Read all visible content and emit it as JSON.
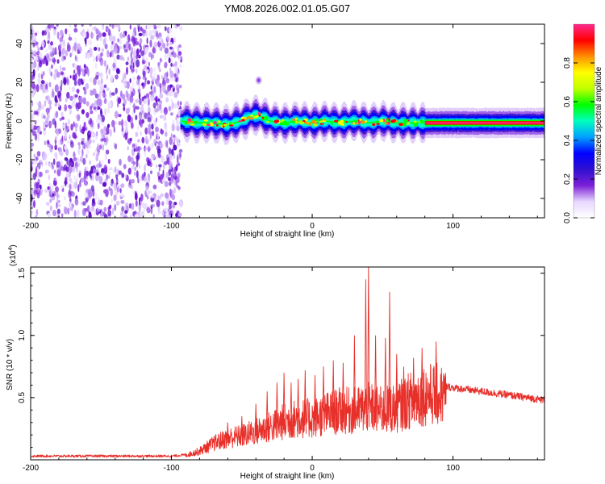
{
  "title": "YM08.2026.002.01.05.G07",
  "chart_data": [
    {
      "type": "heatmap",
      "xlabel": "Height of straight line (km)",
      "ylabel": "Frequency (Hz)",
      "xlim": [
        -200,
        165
      ],
      "ylim": [
        -50,
        50
      ],
      "xticks": [
        -200,
        -100,
        0,
        100
      ],
      "xtick_labels": [
        "-200",
        "-100",
        "0",
        "100"
      ],
      "yticks": [
        -40,
        -20,
        0,
        20,
        40
      ],
      "ytick_labels": [
        "-40",
        "-20",
        "0",
        "20",
        "40"
      ],
      "colorbar": {
        "label": "Normalized spectral amplitude",
        "range": [
          0,
          1
        ],
        "ticks": [
          0.0,
          0.2,
          0.4,
          0.6,
          0.8
        ],
        "tick_labels": [
          "0.0",
          "0.2",
          "0.4",
          "0.6",
          "0.8"
        ],
        "colormap": [
          "#ffffff",
          "#e8d8ff",
          "#7b1fd6",
          "#3010d0",
          "#0000ff",
          "#00a0ff",
          "#00ffc0",
          "#00ff00",
          "#c0ff00",
          "#ffff00",
          "#ff9000",
          "#ff0000",
          "#ff2a8c"
        ]
      },
      "noise_region_x": [
        -200,
        -93
      ],
      "signal_start_x": -93,
      "signal_track": {
        "x": [
          -93,
          -80,
          -70,
          -60,
          -50,
          -45,
          -40,
          -35,
          -30,
          -20,
          -10,
          0,
          10,
          20,
          30,
          40,
          50,
          60,
          70,
          80,
          100,
          120,
          140,
          165
        ],
        "freq": [
          0,
          -1,
          -1,
          -2,
          0,
          2,
          3,
          2,
          0,
          -1,
          0,
          -1,
          0,
          -1,
          0,
          -1,
          0,
          -1,
          -1,
          -1,
          -1,
          -1,
          -1,
          -1
        ]
      },
      "isolated_blob": {
        "x": -38,
        "freq": 21
      }
    },
    {
      "type": "line",
      "xlabel": "Height of straight line (km)",
      "ylabel": "SNR (10 * v/v)",
      "scale_label": "(x10",
      "scale_exponent": "4",
      "xlim": [
        -200,
        165
      ],
      "ylim": [
        0,
        1.55
      ],
      "xticks": [
        -200,
        -100,
        0,
        100
      ],
      "xtick_labels": [
        "-200",
        "-100",
        "0",
        "100"
      ],
      "yticks": [
        0.5,
        1.0,
        1.5
      ],
      "ytick_labels": [
        "0.5",
        "1.0",
        "1.5"
      ],
      "series": [
        {
          "name": "SNR",
          "color": "#e8302a",
          "envelope_x": [
            -200,
            -150,
            -100,
            -90,
            -80,
            -70,
            -60,
            -50,
            -40,
            -30,
            -20,
            -10,
            0,
            10,
            20,
            30,
            40,
            50,
            60,
            70,
            80,
            90,
            100,
            120,
            140,
            165
          ],
          "envelope_y": [
            0.03,
            0.03,
            0.03,
            0.04,
            0.08,
            0.15,
            0.2,
            0.22,
            0.26,
            0.3,
            0.35,
            0.38,
            0.38,
            0.42,
            0.45,
            0.45,
            0.48,
            0.45,
            0.48,
            0.55,
            0.6,
            0.6,
            0.58,
            0.55,
            0.52,
            0.48
          ],
          "spikes_x": [
            -60,
            -50,
            -40,
            -32,
            -25,
            -20,
            -15,
            -10,
            -5,
            2,
            8,
            15,
            22,
            30,
            38,
            40,
            45,
            52,
            55,
            60,
            65,
            72,
            78,
            88
          ],
          "spikes_y": [
            0.3,
            0.35,
            0.45,
            0.55,
            0.62,
            0.7,
            0.62,
            0.65,
            0.72,
            0.68,
            0.75,
            0.8,
            0.78,
            1.0,
            1.45,
            1.55,
            1.0,
            0.98,
            1.35,
            0.85,
            0.75,
            0.82,
            0.9,
            0.95
          ]
        }
      ]
    }
  ]
}
